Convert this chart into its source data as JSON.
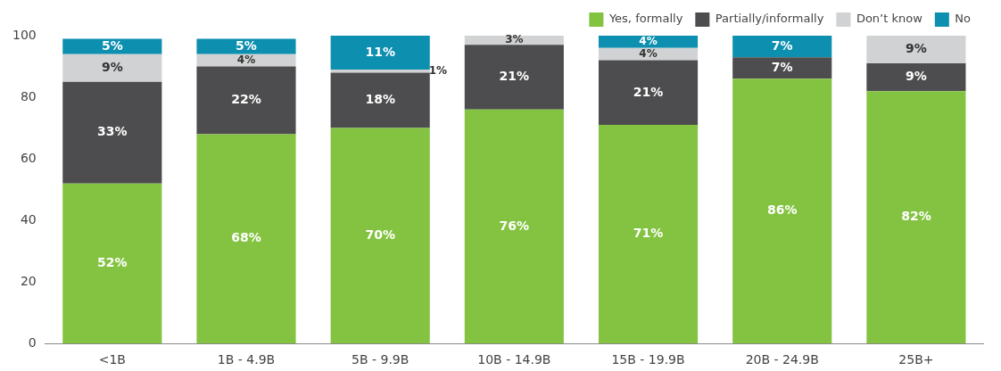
{
  "chart_data": {
    "type": "bar",
    "stacked": true,
    "categories": [
      "<1B",
      "1B - 4.9B",
      "5B - 9.9B",
      "10B - 14.9B",
      "15B - 19.9B",
      "20B - 24.9B",
      "25B+"
    ],
    "series": [
      {
        "name": "Yes, formally",
        "color": "#84c341",
        "values": [
          52,
          68,
          70,
          76,
          71,
          86,
          82
        ],
        "value_labels": [
          "52%",
          "68%",
          "70%",
          "76%",
          "71%",
          "86%",
          "82%"
        ]
      },
      {
        "name": "Partially/informally",
        "color": "#4d4d4f",
        "values": [
          33,
          22,
          18,
          21,
          21,
          7,
          9
        ],
        "value_labels": [
          "33%",
          "22%",
          "18%",
          "21%",
          "21%",
          "7%",
          "9%"
        ]
      },
      {
        "name": "Don’t know",
        "color": "#d1d2d3",
        "values": [
          9,
          4,
          1,
          3,
          4,
          null,
          9
        ],
        "value_labels": [
          "9%",
          "4%",
          "1%",
          "3%",
          "4%",
          null,
          "9%"
        ]
      },
      {
        "name": "No",
        "color": "#0d8fb0",
        "values": [
          5,
          5,
          11,
          null,
          4,
          7,
          null
        ],
        "value_labels": [
          "5%",
          "5%",
          "11%",
          null,
          "4%",
          "7%",
          null
        ]
      }
    ],
    "ylim": [
      0,
      100
    ],
    "yticks": [
      0,
      20,
      40,
      60,
      80,
      100
    ],
    "grid": false,
    "legend": "top right"
  }
}
